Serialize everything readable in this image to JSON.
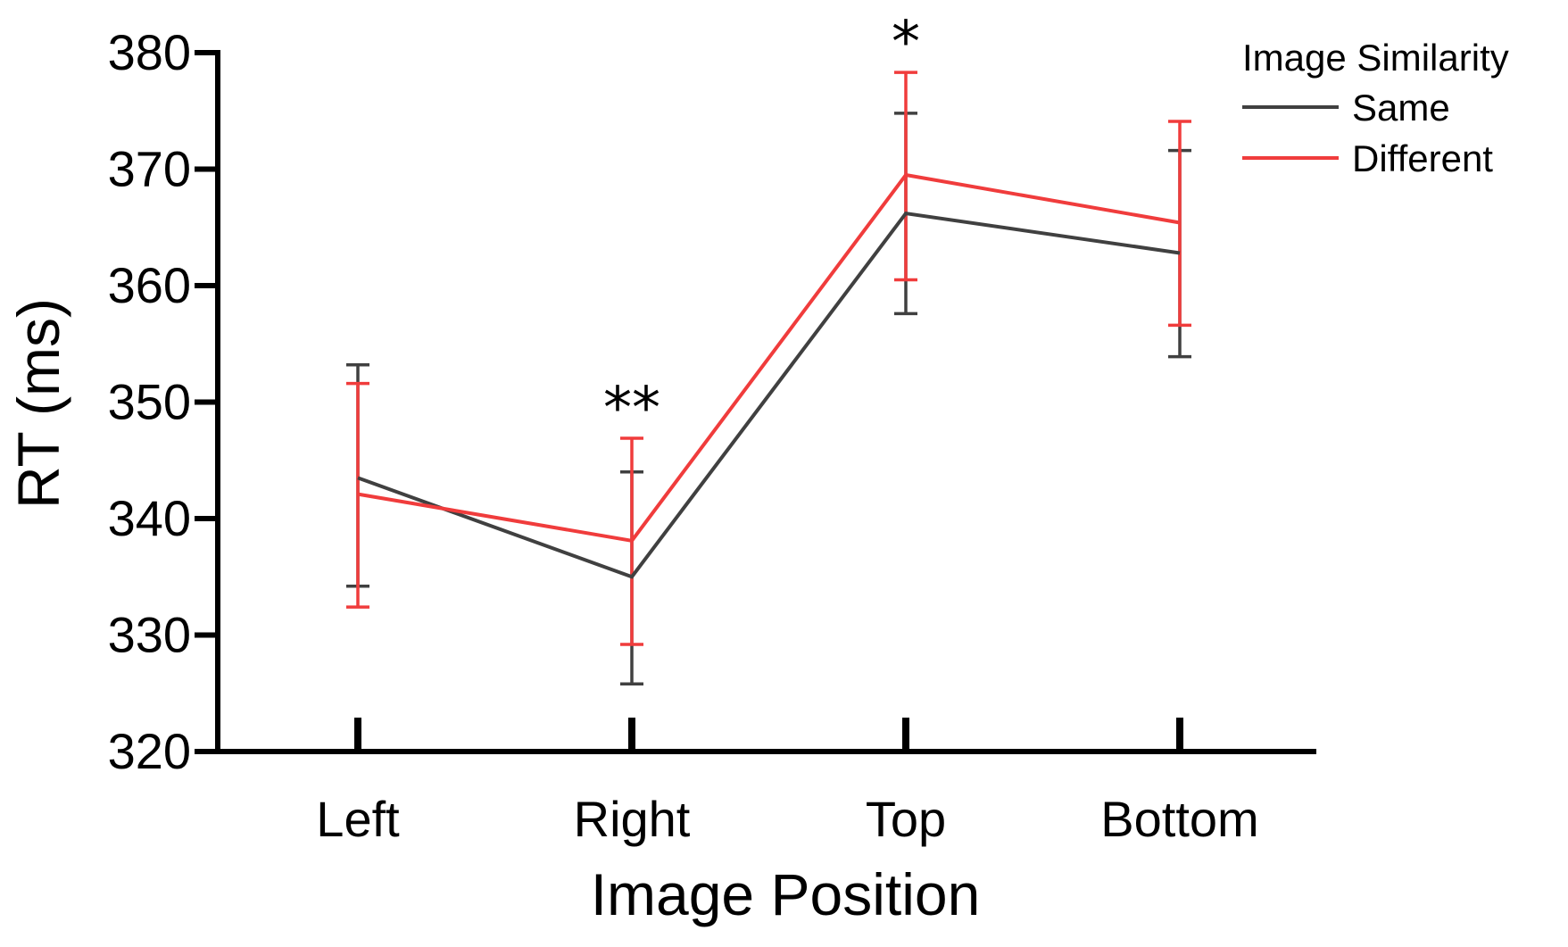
{
  "chart_data": {
    "type": "line",
    "xlabel": "Image Position",
    "ylabel": "RT (ms)",
    "categories": [
      "Left",
      "Right",
      "Top",
      "Bottom"
    ],
    "yticks": [
      "320",
      "330",
      "340",
      "350",
      "360",
      "370",
      "380"
    ],
    "ylim": [
      320,
      380
    ],
    "grid": false,
    "legend": {
      "title": "Image Similarity",
      "position": "top-right"
    },
    "series": [
      {
        "name": "Same",
        "color": "#404040",
        "values": [
          343.5,
          335.0,
          366.2,
          362.8
        ],
        "err_low": [
          334.2,
          325.8,
          357.6,
          353.9
        ],
        "err_high": [
          353.2,
          344.0,
          374.8,
          371.6
        ]
      },
      {
        "name": "Different",
        "color": "#f03c3c",
        "values": [
          342.1,
          338.1,
          369.5,
          365.4
        ],
        "err_low": [
          332.4,
          329.2,
          360.5,
          356.6
        ],
        "err_high": [
          351.6,
          346.9,
          378.3,
          374.1
        ]
      }
    ],
    "annotations": [
      {
        "category": "Right",
        "text": "**"
      },
      {
        "category": "Top",
        "text": "*"
      }
    ]
  }
}
